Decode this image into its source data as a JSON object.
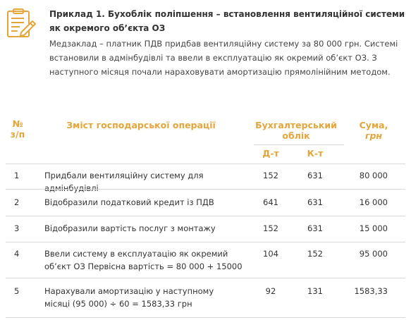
{
  "example": {
    "title": "Приклад 1. Бухоблік поліпшення – встановлення вентиляційної системи як окремого об’єкта ОЗ",
    "text": "Медзаклад – платник ПДВ придбав вентиляційну систему за 80 000 грн. Системі встановили в адмінбудівлі та ввели в експлуатацію як окремий об’єкт ОЗ. З наступного місяця почали нараховувати амортизацію прямолінійним методом.",
    "icon": "clipboard-pencil-icon",
    "accent_color": "#e4a53b"
  },
  "table": {
    "headers": {
      "num_line1": "№",
      "num_line2": "з/п",
      "content": "Зміст господарської операції",
      "accounting": "Бухгалтерський облік",
      "debit": "Д-т",
      "credit": "К-т",
      "sum": "Сума,",
      "sum_unit": "грн"
    },
    "rows": [
      {
        "num": "1",
        "desc": "Придбали вентиляційну систему для адмінбудівлі",
        "debit": "152",
        "credit": "631",
        "amount": "80 000"
      },
      {
        "num": "2",
        "desc": "Відобразили податковий кредит із ПДВ",
        "debit": "641",
        "credit": "631",
        "amount": "16 000"
      },
      {
        "num": "3",
        "desc": "Відобразили вартість послуг з монтажу",
        "debit": "152",
        "credit": "631",
        "amount": "15 000"
      },
      {
        "num": "4",
        "desc": "Ввели систему в експлуатацію як окремий об’єкт ОЗ Первісна вартість = 80 000 + 15000",
        "debit": "104",
        "credit": "152",
        "amount": "95 000"
      },
      {
        "num": "5",
        "desc": "Нарахували амортизацію у наступному місяці (95 000) ÷ 60 = 1583,33 грн",
        "debit": "92",
        "credit": "131",
        "amount": "1583,33"
      }
    ]
  }
}
